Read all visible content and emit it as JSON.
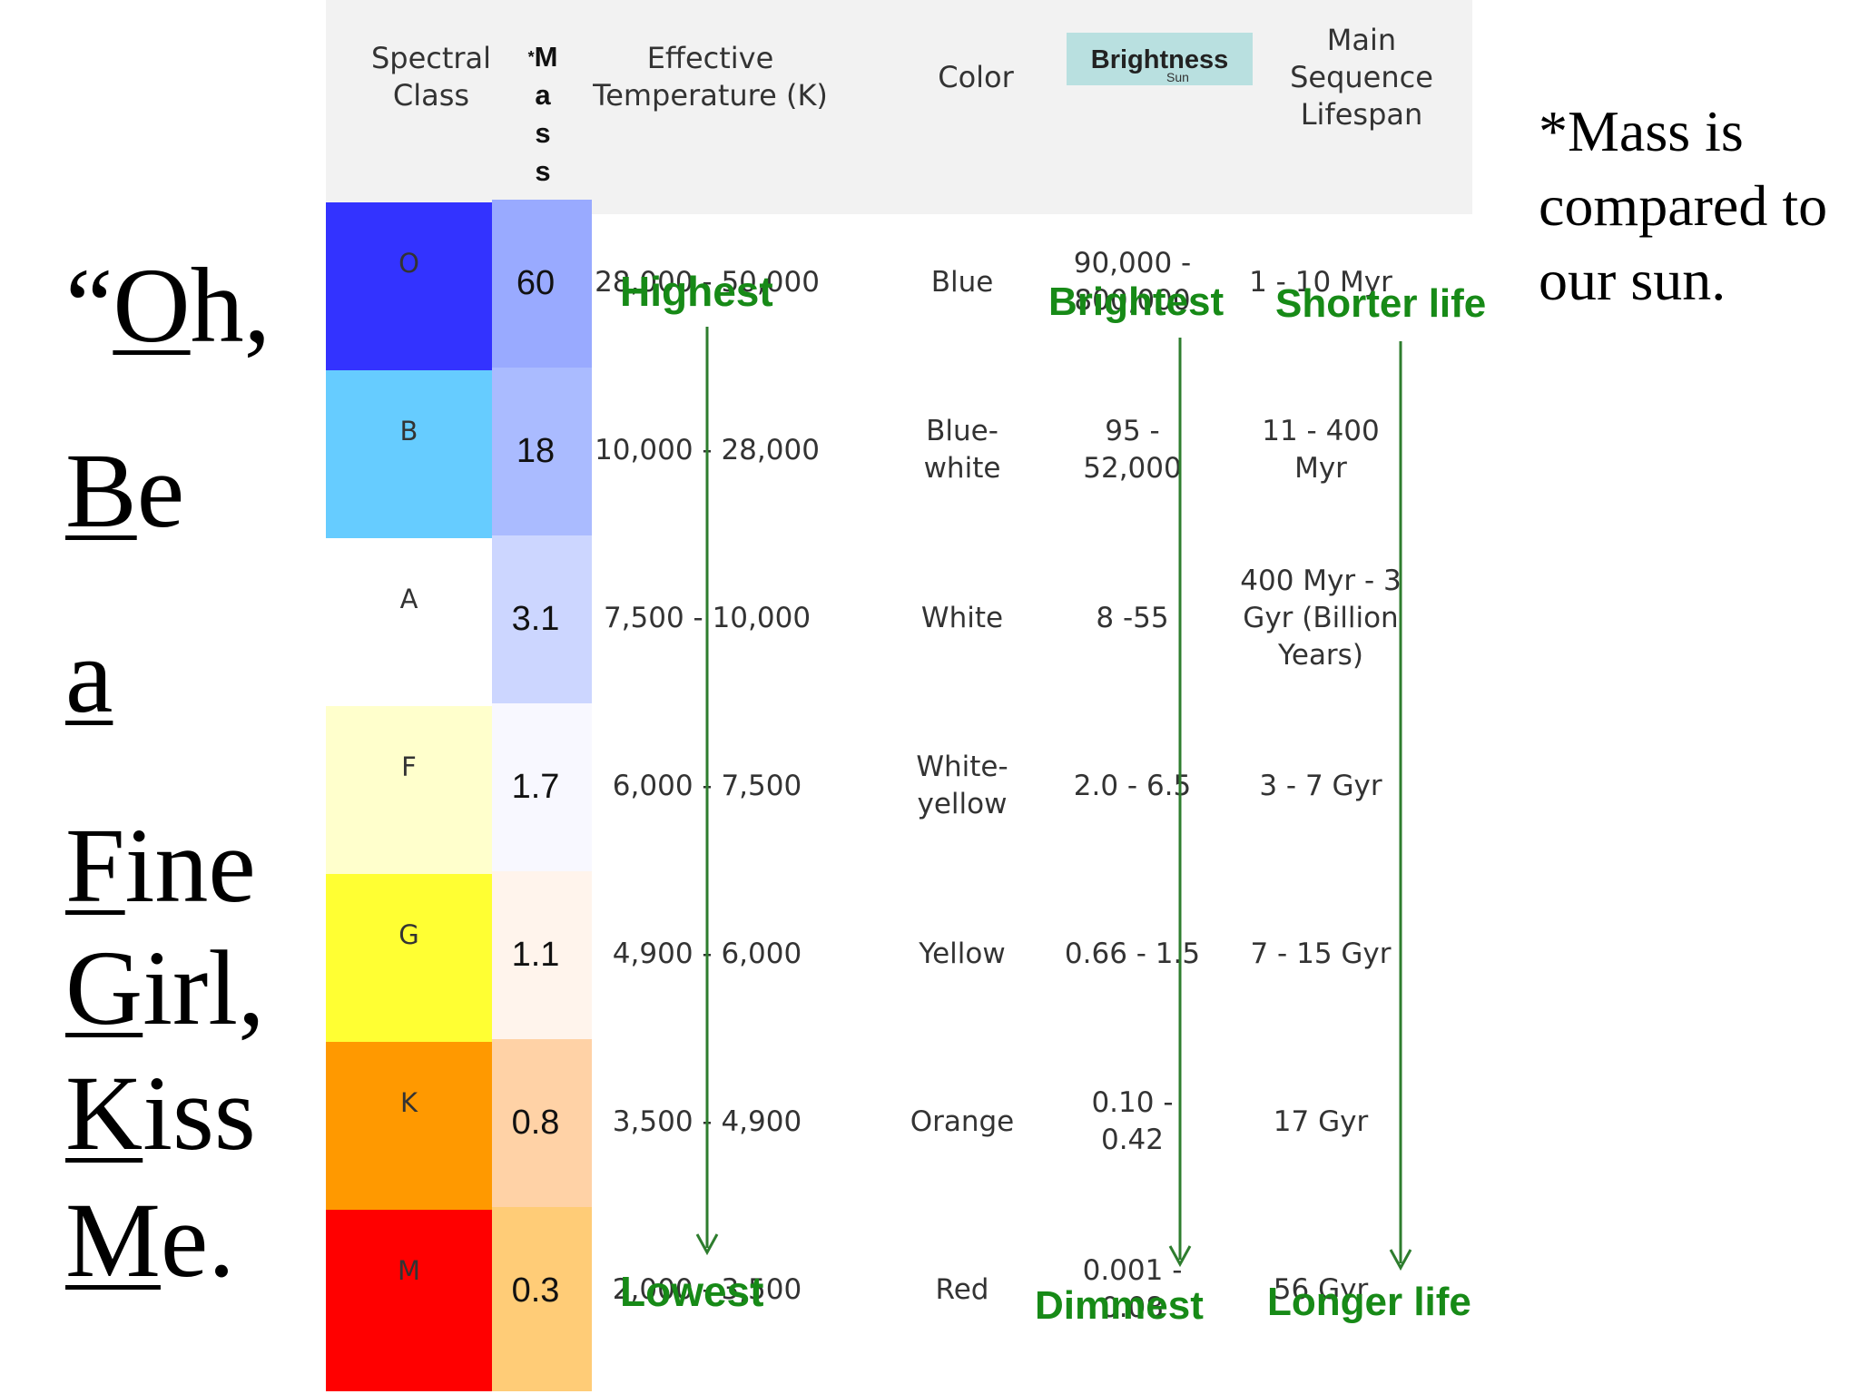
{
  "mnemonic": {
    "line1": {
      "quote": "“",
      "first": "O",
      "rest": "h,"
    },
    "line2": {
      "first": "B",
      "rest": "e"
    },
    "line3": {
      "first": "a",
      "rest": ""
    },
    "line4": {
      "first": "F",
      "rest": "ine"
    },
    "line5": {
      "first": "G",
      "rest": "irl,"
    },
    "line6": {
      "first": "K",
      "rest": "iss"
    },
    "line7": {
      "first": "M",
      "rest": "e."
    }
  },
  "headers": {
    "spectral_class": "Spectral Class",
    "mass_star": "*",
    "mass_letters": [
      "M",
      "a",
      "s",
      "s"
    ],
    "effective_temperature": "Effective Temperature (K)",
    "color": "Color",
    "brightness": "Brightness",
    "brightness_sub": "Sun",
    "lifespan": "Main Sequence Lifespan"
  },
  "rows": [
    {
      "cls": "O",
      "mass": "60",
      "temp": "28,000 - 50,000",
      "color": "Blue",
      "brightness": "90,000 - 800,000",
      "lifespan": "1 - 10 Myr",
      "swatch": "#3333ff",
      "mass_bg": "#99aaff"
    },
    {
      "cls": "B",
      "mass": "18",
      "temp": "10,000 - 28,000",
      "color": "Blue-white",
      "brightness": "95 - 52,000",
      "lifespan": "11 - 400 Myr",
      "swatch": "#66ccff",
      "mass_bg": "#aabbff"
    },
    {
      "cls": "A",
      "mass": "3.1",
      "temp": "7,500 - 10,000",
      "color": "White",
      "brightness": "8 -55",
      "lifespan": "400 Myr - 3 Gyr (Billion Years)",
      "swatch": "#ffffff",
      "mass_bg": "#ccd6ff"
    },
    {
      "cls": "F",
      "mass": "1.7",
      "temp": "6,000 - 7,500",
      "color": "White-yellow",
      "brightness": "2.0 - 6.5",
      "lifespan": "3 - 7 Gyr",
      "swatch": "#ffffcc",
      "mass_bg": "#f8f8ff"
    },
    {
      "cls": "G",
      "mass": "1.1",
      "temp": "4,900 - 6,000",
      "color": "Yellow",
      "brightness": "0.66 - 1.5",
      "lifespan": "7 - 15 Gyr",
      "swatch": "#ffff33",
      "mass_bg": "#fff4ec"
    },
    {
      "cls": "K",
      "mass": "0.8",
      "temp": "3,500 - 4,900",
      "color": "Orange",
      "brightness": "0.10 - 0.42",
      "lifespan": "17 Gyr",
      "swatch": "#ff9900",
      "mass_bg": "#ffd2a6"
    },
    {
      "cls": "M",
      "mass": "0.3",
      "temp": "2,000 - 3,500",
      "color": "Red",
      "brightness": "0.001 - 0.08",
      "lifespan": "56 Gyr",
      "swatch": "#ff0000",
      "mass_bg": "#ffcc77"
    }
  ],
  "annotations": {
    "temp_top": "Highest",
    "temp_bottom": "Lowest",
    "bright_top": "Brightest",
    "bright_bottom": "Dimmest",
    "life_top": "Shorter life",
    "life_bottom": "Longer life",
    "arrow_color": "#2e7d2e",
    "label_color": "#178a17"
  },
  "note": "*Mass is compared to our sun."
}
